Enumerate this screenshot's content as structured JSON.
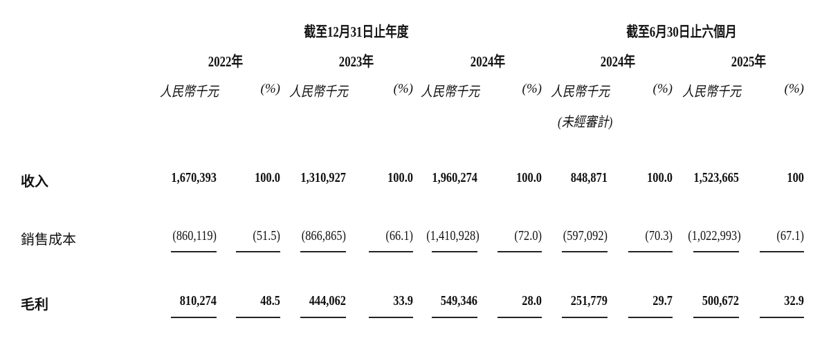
{
  "header": {
    "period_fy": "截至12月31日止年度",
    "period_hy": "截至6月30日止六個月",
    "years": [
      "2022年",
      "2023年",
      "2024年",
      "2024年",
      "2025年"
    ],
    "unit_label": "人民幣千元",
    "pct_label": "(%)",
    "unaudited": "(未經審計)"
  },
  "rows": [
    {
      "label": "收入",
      "values": [
        "1,670,393",
        "100.0",
        "1,310,927",
        "100.0",
        "1,960,274",
        "100.0",
        "848,871",
        "100.0",
        "1,523,665",
        "100"
      ]
    },
    {
      "label": "銷售成本",
      "values": [
        "(860,119)",
        "(51.5)",
        "(866,865)",
        "(66.1)",
        "(1,410,928)",
        "(72.0)",
        "(597,092)",
        "(70.3)",
        "(1,022,993)",
        "(67.1)"
      ]
    },
    {
      "label": "毛利",
      "values": [
        "810,274",
        "48.5",
        "444,062",
        "33.9",
        "549,346",
        "28.0",
        "251,779",
        "29.7",
        "500,672",
        "32.9"
      ]
    }
  ]
}
